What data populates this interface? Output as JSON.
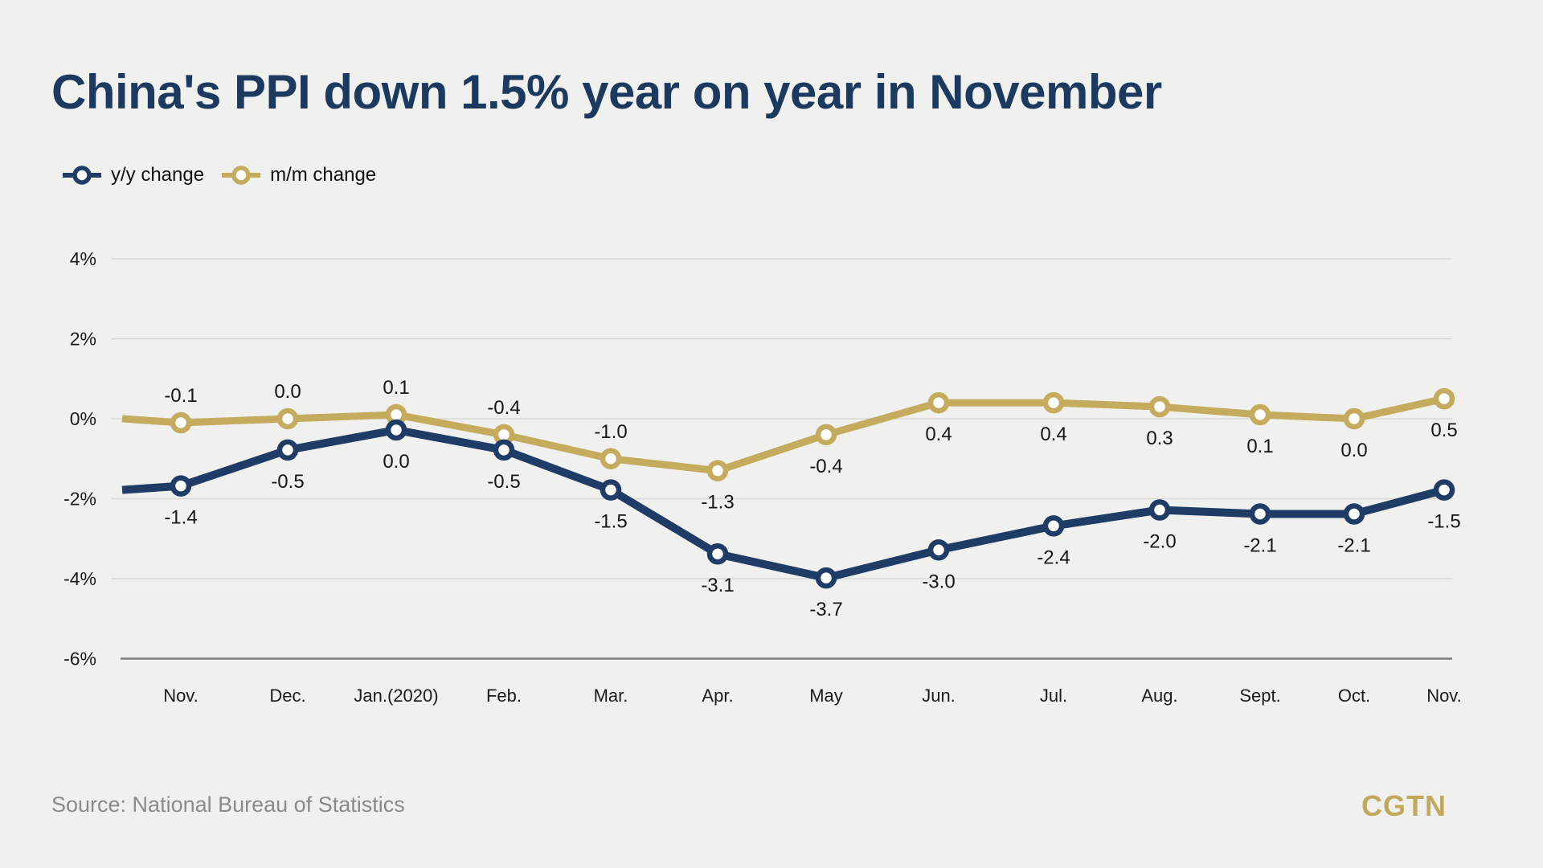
{
  "page": {
    "background": "#f0f0ee"
  },
  "header": {
    "title": "China's PPI down 1.5% year on year in November"
  },
  "legend": [
    {
      "label": "y/y change",
      "color": "#1e3c66"
    },
    {
      "label": "m/m change",
      "color": "#c5ab5e"
    }
  ],
  "footer": {
    "source": "Source: National Bureau of Statistics",
    "logo": "CGTN",
    "logo_color": "#c2a85c"
  },
  "chart_data": {
    "type": "line",
    "title": "China's PPI down 1.5% year on year in November",
    "categories": [
      "Nov.",
      "Dec.",
      "Jan.(2020)",
      "Feb.",
      "Mar.",
      "Apr.",
      "May",
      "Jun.",
      "Jul.",
      "Aug.",
      "Sept.",
      "Oct.",
      "Nov."
    ],
    "series": [
      {
        "id": "yy-change",
        "name": "y/y change",
        "color": "#1e3c66",
        "values": [
          -1.4,
          -0.5,
          0.0,
          -0.5,
          -1.5,
          -3.1,
          -3.7,
          -3.0,
          -2.4,
          -2.0,
          -2.1,
          -2.1,
          -1.5
        ],
        "labels": [
          "-1.4",
          "-0.5",
          "0.0",
          "-0.5",
          "-1.5",
          "-3.1",
          "-3.7",
          "-3.0",
          "-2.4",
          "-2.0",
          "-2.1",
          "-2.1",
          "-1.5"
        ]
      },
      {
        "id": "mm-change",
        "name": "m/m change",
        "color": "#c5ab5e",
        "values": [
          -0.1,
          0.0,
          0.1,
          -0.4,
          -1.0,
          -1.3,
          -0.4,
          0.4,
          0.4,
          0.3,
          0.1,
          0.0,
          0.5
        ],
        "labels": [
          "-0.1",
          "0.0",
          "0.1",
          "-0.4",
          "-1.0",
          "-1.3",
          "-0.4",
          "0.4",
          "0.4",
          "0.3",
          "0.1",
          "0.0",
          "0.5"
        ]
      }
    ],
    "y_axis": {
      "ticks": [
        {
          "label": "4%",
          "value": 4
        },
        {
          "label": "2%",
          "value": 2
        },
        {
          "label": "0%",
          "value": 0
        },
        {
          "label": "-2%",
          "value": -2
        },
        {
          "label": "-4%",
          "value": -4
        },
        {
          "label": "-6%",
          "value": -6
        }
      ]
    },
    "ylim": [
      -6,
      4.6
    ],
    "xlabel": "",
    "ylabel": "",
    "grid": true,
    "legend_position": "top-left",
    "marker_fill": "#fcfcfa",
    "gridline_color": "#d7d7d5",
    "axis_color": "#7c7c7c",
    "label_color": "#161616"
  }
}
